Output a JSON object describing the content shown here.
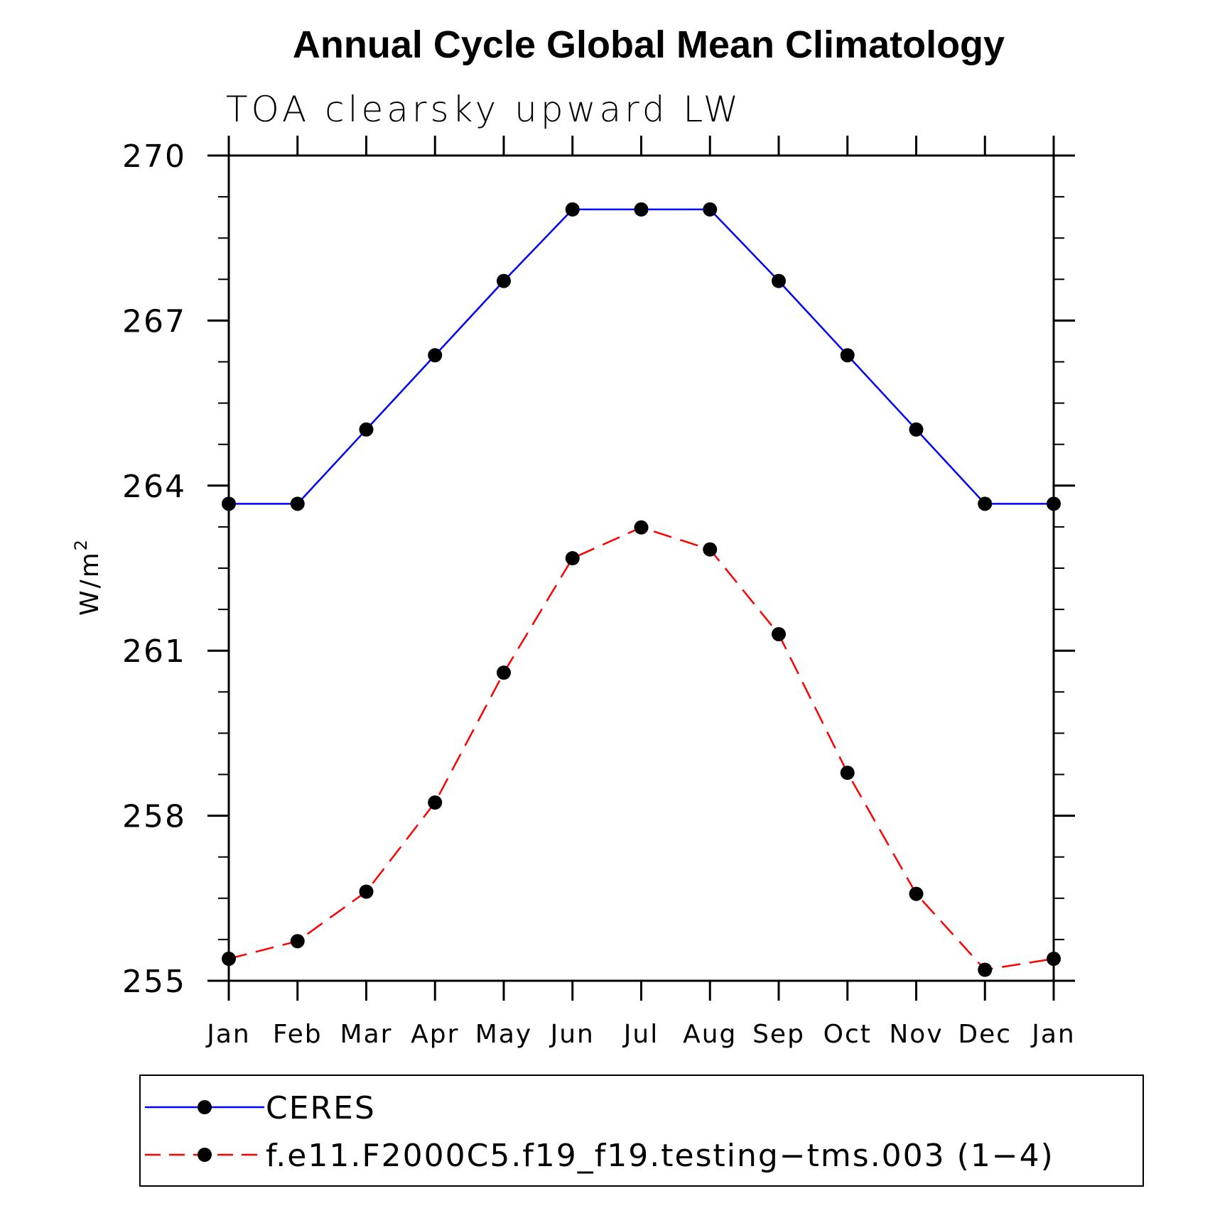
{
  "chart_data": {
    "type": "line",
    "title": "Annual Cycle Global Mean Climatology",
    "subtitle": "TOA clearsky upward LW",
    "ylabel_base": "W/m",
    "ylabel_sup": "2",
    "ylim": [
      255,
      270
    ],
    "yticks": [
      "255",
      "258",
      "261",
      "264",
      "267",
      "270"
    ],
    "categories": [
      "Jan",
      "Feb",
      "Mar",
      "Apr",
      "May",
      "Jun",
      "Jul",
      "Aug",
      "Sep",
      "Oct",
      "Nov",
      "Dec",
      "Jan"
    ],
    "series": [
      {
        "name": "CERES",
        "color": "#0000ff",
        "dash": "solid",
        "values": [
          263.67,
          263.67,
          265.02,
          266.37,
          267.72,
          269.02,
          269.02,
          269.02,
          267.72,
          266.37,
          265.02,
          263.67,
          263.67
        ]
      },
      {
        "name": "f.e11.F2000C5.f19_f19.testing−tms.003 (1−4)",
        "color": "#ff0000",
        "dash": "dashed",
        "values": [
          255.4,
          255.72,
          256.62,
          258.24,
          260.6,
          262.68,
          263.24,
          262.84,
          261.3,
          258.78,
          256.58,
          255.2,
          255.4
        ]
      }
    ],
    "legend": "bottom"
  }
}
